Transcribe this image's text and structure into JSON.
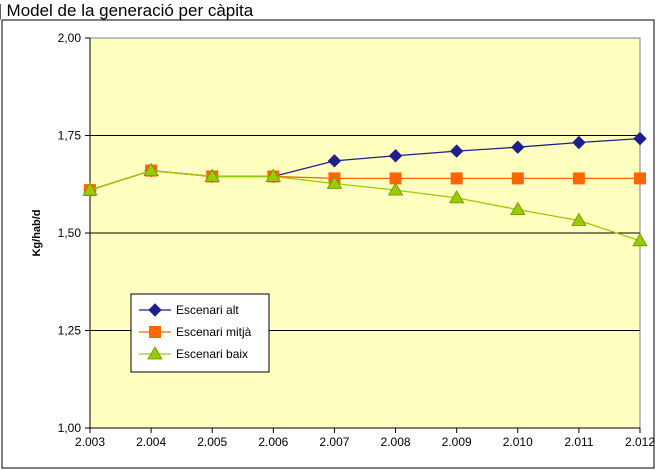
{
  "figure_caption": "[Figura 3] Model de la generació per càpita",
  "chart_data": {
    "type": "line",
    "title": "",
    "xlabel": "",
    "ylabel": "Kg/hab/d",
    "categories": [
      "2.003",
      "2.004",
      "2.005",
      "2.006",
      "2.007",
      "2.008",
      "2.009",
      "2.010",
      "2.011",
      "2.012"
    ],
    "ylim": [
      1.0,
      2.0
    ],
    "yticks": [
      1.0,
      1.25,
      1.5,
      1.75,
      2.0
    ],
    "ytick_labels": [
      "1,00",
      "1,25",
      "1,50",
      "1,75",
      "2,00"
    ],
    "grid": true,
    "legend_position": "bottom-left",
    "plot_background": "#ffffc0",
    "series": [
      {
        "name": "Escenari alt",
        "color": "#1f1f8c",
        "marker": "diamond",
        "values": [
          1.61,
          1.66,
          1.645,
          1.645,
          1.685,
          1.698,
          1.71,
          1.72,
          1.732,
          1.742
        ]
      },
      {
        "name": "Escenari mitjà",
        "color": "#ff6600",
        "marker": "square",
        "values": [
          1.61,
          1.66,
          1.645,
          1.645,
          1.64,
          1.64,
          1.64,
          1.64,
          1.64,
          1.64
        ]
      },
      {
        "name": "Escenari baix",
        "color": "#99cc00",
        "marker": "triangle",
        "values": [
          1.61,
          1.66,
          1.645,
          1.645,
          1.627,
          1.61,
          1.59,
          1.56,
          1.532,
          1.48
        ]
      }
    ]
  }
}
